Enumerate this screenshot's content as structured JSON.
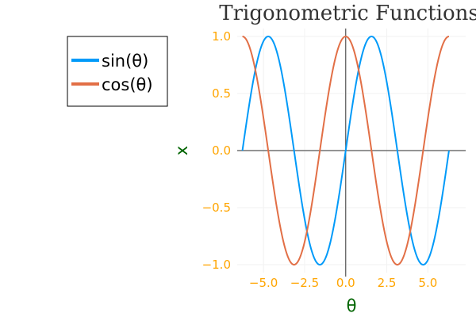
{
  "chart_data": {
    "type": "line",
    "title": "Trigonometric Functions",
    "xlabel": "θ",
    "ylabel": "x",
    "xlim": [
      -6.6,
      7.3
    ],
    "ylim": [
      -1.07,
      1.07
    ],
    "x_ticks": [
      -5.0,
      -2.5,
      0.0,
      2.5,
      5.0
    ],
    "x_tick_labels": [
      "−5.0",
      "−2.5",
      "0.0",
      "2.5",
      "5.0"
    ],
    "y_ticks": [
      1.0,
      0.5,
      0.0,
      -0.5,
      -1.0
    ],
    "y_tick_labels": [
      "1.0",
      "0.5",
      "0.0",
      "−0.5",
      "−1.0"
    ],
    "x_range": [
      -6.283,
      6.283
    ],
    "grid": true,
    "legend_position": "outside-left",
    "colors": {
      "tick_labels": "#ffa500",
      "axis_labels": "#006400",
      "grid": "#f2f2f2",
      "axis_lines": "#555555"
    },
    "series": [
      {
        "name": "sin(θ)",
        "function": "sin",
        "color": "#009af9",
        "x": [
          -6.283,
          -5.498,
          -4.712,
          -3.927,
          -3.142,
          -2.356,
          -1.571,
          -0.785,
          0.0,
          0.785,
          1.571,
          2.356,
          3.142,
          3.927,
          4.712,
          5.498,
          6.283
        ],
        "y": [
          0.0,
          0.707,
          1.0,
          0.707,
          0.0,
          -0.707,
          -1.0,
          -0.707,
          0.0,
          0.707,
          1.0,
          0.707,
          0.0,
          -0.707,
          -1.0,
          -0.707,
          0.0
        ]
      },
      {
        "name": "cos(θ)",
        "function": "cos",
        "color": "#e26f46",
        "x": [
          -6.283,
          -5.498,
          -4.712,
          -3.927,
          -3.142,
          -2.356,
          -1.571,
          -0.785,
          0.0,
          0.785,
          1.571,
          2.356,
          3.142,
          3.927,
          4.712,
          5.498,
          6.283
        ],
        "y": [
          1.0,
          0.707,
          0.0,
          -0.707,
          -1.0,
          -0.707,
          0.0,
          0.707,
          1.0,
          0.707,
          0.0,
          -0.707,
          -1.0,
          -0.707,
          0.0,
          0.707,
          1.0
        ]
      }
    ]
  }
}
